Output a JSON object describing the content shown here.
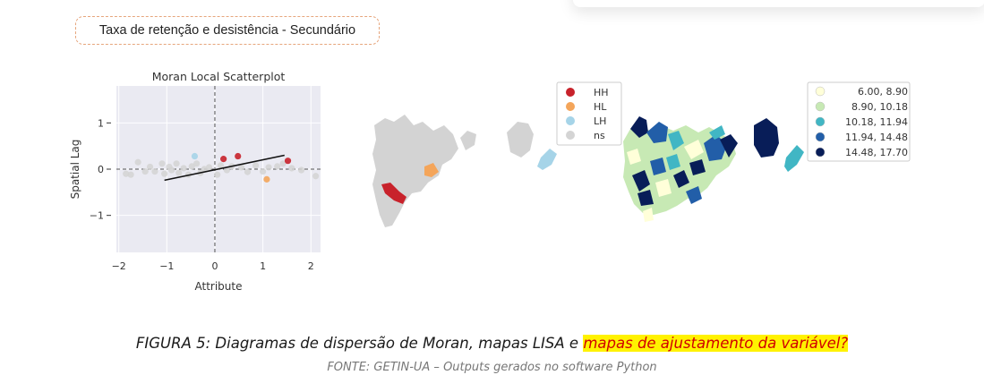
{
  "header": {
    "title": "Taxa de retenção e desistência - Secundário"
  },
  "chart_data": {
    "type": "scatter",
    "title": "Moran Local Scatterplot",
    "xlabel": "Attribute",
    "ylabel": "Spatial Lag",
    "xlim": [
      -2.05,
      2.2
    ],
    "ylim": [
      -1.8,
      1.8
    ],
    "xticks": [
      "−2",
      "−1",
      "0",
      "1",
      "2"
    ],
    "yticks": [
      "1",
      "0",
      "−1"
    ],
    "grid": true,
    "points": [
      {
        "x": -1.85,
        "y": -0.1,
        "c": "ns"
      },
      {
        "x": -1.75,
        "y": -0.12,
        "c": "ns"
      },
      {
        "x": -1.6,
        "y": 0.15,
        "c": "ns"
      },
      {
        "x": -1.45,
        "y": -0.05,
        "c": "ns"
      },
      {
        "x": -1.35,
        "y": 0.05,
        "c": "ns"
      },
      {
        "x": -1.25,
        "y": -0.05,
        "c": "ns"
      },
      {
        "x": -1.1,
        "y": 0.12,
        "c": "ns"
      },
      {
        "x": -1.05,
        "y": -0.1,
        "c": "ns"
      },
      {
        "x": -0.95,
        "y": 0.05,
        "c": "ns"
      },
      {
        "x": -0.9,
        "y": -0.02,
        "c": "ns"
      },
      {
        "x": -0.8,
        "y": 0.12,
        "c": "ns"
      },
      {
        "x": -0.75,
        "y": -0.08,
        "c": "ns"
      },
      {
        "x": -0.65,
        "y": 0.02,
        "c": "ns"
      },
      {
        "x": -0.55,
        "y": -0.12,
        "c": "ns"
      },
      {
        "x": -0.48,
        "y": 0.06,
        "c": "ns"
      },
      {
        "x": -0.42,
        "y": 0.28,
        "c": "LH"
      },
      {
        "x": -0.38,
        "y": 0.12,
        "c": "ns"
      },
      {
        "x": -0.3,
        "y": -0.08,
        "c": "ns"
      },
      {
        "x": -0.22,
        "y": 0.0,
        "c": "ns"
      },
      {
        "x": -0.12,
        "y": 0.04,
        "c": "ns"
      },
      {
        "x": 0.05,
        "y": -0.12,
        "c": "ns"
      },
      {
        "x": 0.12,
        "y": 0.08,
        "c": "ns"
      },
      {
        "x": 0.18,
        "y": 0.22,
        "c": "HH"
      },
      {
        "x": 0.25,
        "y": -0.02,
        "c": "ns"
      },
      {
        "x": 0.35,
        "y": 0.06,
        "c": "ns"
      },
      {
        "x": 0.48,
        "y": 0.28,
        "c": "HH"
      },
      {
        "x": 0.55,
        "y": 0.04,
        "c": "ns"
      },
      {
        "x": 0.68,
        "y": -0.06,
        "c": "ns"
      },
      {
        "x": 0.85,
        "y": 0.08,
        "c": "ns"
      },
      {
        "x": 1.0,
        "y": -0.05,
        "c": "ns"
      },
      {
        "x": 1.08,
        "y": -0.22,
        "c": "HL"
      },
      {
        "x": 1.12,
        "y": 0.04,
        "c": "ns"
      },
      {
        "x": 1.3,
        "y": 0.06,
        "c": "ns"
      },
      {
        "x": 1.42,
        "y": 0.12,
        "c": "ns"
      },
      {
        "x": 1.52,
        "y": 0.18,
        "c": "HH"
      },
      {
        "x": 1.6,
        "y": 0.02,
        "c": "ns"
      },
      {
        "x": 1.8,
        "y": -0.02,
        "c": "ns"
      },
      {
        "x": 2.1,
        "y": -0.15,
        "c": "ns"
      }
    ],
    "fit_line": [
      [
        -1.05,
        -0.24
      ],
      [
        1.45,
        0.3
      ]
    ]
  },
  "lisa_legend": {
    "items": [
      {
        "label": "HH",
        "color": "#c8222b"
      },
      {
        "label": "HL",
        "color": "#f4a55a"
      },
      {
        "label": "LH",
        "color": "#a6d4e8"
      },
      {
        "label": "ns",
        "color": "#d4d4d4"
      }
    ]
  },
  "value_legend": {
    "items": [
      {
        "label": "6.00,  8.90",
        "color": "#ffffd9"
      },
      {
        "label": "8.90, 10.18",
        "color": "#c7e9b4"
      },
      {
        "label": "10.18, 11.94",
        "color": "#41b6c4"
      },
      {
        "label": "11.94, 14.48",
        "color": "#225ea8"
      },
      {
        "label": "14.48, 17.70",
        "color": "#081d58"
      }
    ]
  },
  "caption": {
    "prefix": "FIGURA 5: Diagramas de dispersão de Moran, mapas LISA e ",
    "highlight": "mapas de ajustamento da variável?",
    "source": "FONTE: GETIN-UA – Outputs gerados no software Python"
  }
}
